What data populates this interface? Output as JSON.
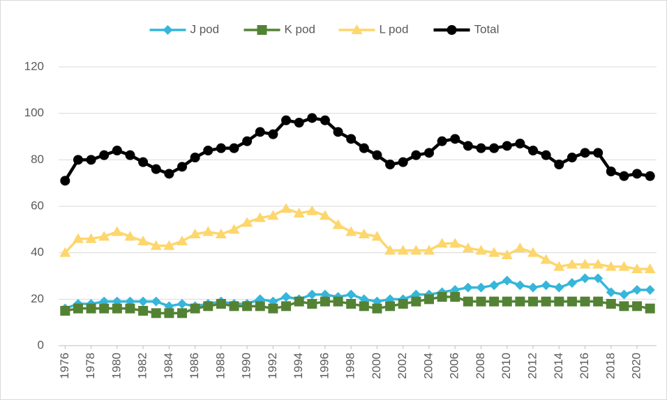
{
  "chart_data": {
    "type": "line",
    "x": [
      1976,
      1977,
      1978,
      1979,
      1980,
      1981,
      1982,
      1983,
      1984,
      1985,
      1986,
      1987,
      1988,
      1989,
      1990,
      1991,
      1992,
      1993,
      1994,
      1995,
      1996,
      1997,
      1998,
      1999,
      2000,
      2001,
      2002,
      2003,
      2004,
      2005,
      2006,
      2007,
      2008,
      2009,
      2010,
      2011,
      2012,
      2013,
      2014,
      2015,
      2016,
      2017,
      2018,
      2019,
      2020,
      2021
    ],
    "xlim": [
      1975.5,
      2021.5
    ],
    "xticks": [
      1976,
      1978,
      1980,
      1982,
      1984,
      1986,
      1988,
      1990,
      1992,
      1994,
      1996,
      1998,
      2000,
      2002,
      2004,
      2006,
      2008,
      2010,
      2012,
      2014,
      2016,
      2018,
      2020
    ],
    "ylim": [
      0,
      120
    ],
    "yticks": [
      0,
      20,
      40,
      60,
      80,
      100,
      120
    ],
    "grid": true,
    "legend": "top",
    "series": [
      {
        "name": "J pod",
        "color": "#35b6da",
        "marker": "diamond",
        "values": [
          16,
          18,
          18,
          19,
          19,
          19,
          19,
          19,
          17,
          18,
          17,
          18,
          19,
          18,
          18,
          20,
          19,
          21,
          20,
          22,
          22,
          21,
          22,
          20,
          19,
          20,
          20,
          22,
          22,
          23,
          24,
          25,
          25,
          26,
          28,
          26,
          25,
          26,
          25,
          27,
          29,
          29,
          23,
          22,
          24,
          24
        ]
      },
      {
        "name": "K pod",
        "color": "#548235",
        "marker": "square",
        "values": [
          15,
          16,
          16,
          16,
          16,
          16,
          15,
          14,
          14,
          14,
          16,
          17,
          18,
          17,
          17,
          17,
          16,
          17,
          19,
          18,
          19,
          19,
          18,
          17,
          16,
          17,
          18,
          19,
          20,
          21,
          21,
          19,
          19,
          19,
          19,
          19,
          19,
          19,
          19,
          19,
          19,
          19,
          18,
          17,
          17,
          16
        ]
      },
      {
        "name": "L pod",
        "color": "#fdd66c",
        "marker": "triangle",
        "values": [
          40,
          46,
          46,
          47,
          49,
          47,
          45,
          43,
          43,
          45,
          48,
          49,
          48,
          50,
          53,
          55,
          56,
          59,
          57,
          58,
          56,
          52,
          49,
          48,
          47,
          41,
          41,
          41,
          41,
          44,
          44,
          42,
          41,
          40,
          39,
          42,
          40,
          37,
          34,
          35,
          35,
          35,
          34,
          34,
          33,
          33
        ]
      },
      {
        "name": "Total",
        "color": "#000000",
        "marker": "circle",
        "values": [
          71,
          80,
          80,
          82,
          84,
          82,
          79,
          76,
          74,
          77,
          81,
          84,
          85,
          85,
          88,
          92,
          91,
          97,
          96,
          98,
          97,
          92,
          89,
          85,
          82,
          78,
          79,
          82,
          83,
          88,
          89,
          86,
          85,
          85,
          86,
          87,
          84,
          82,
          78,
          81,
          83,
          83,
          75,
          73,
          74,
          73
        ]
      }
    ]
  }
}
